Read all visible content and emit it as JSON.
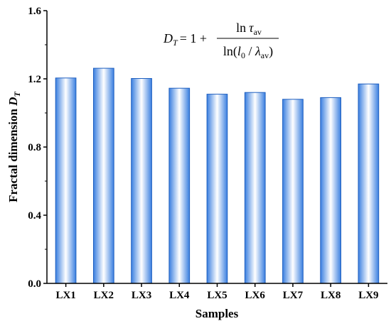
{
  "chart_data": {
    "type": "bar",
    "categories": [
      "LX1",
      "LX2",
      "LX3",
      "LX4",
      "LX5",
      "LX6",
      "LX7",
      "LX8",
      "LX9"
    ],
    "values": [
      1.205,
      1.262,
      1.202,
      1.145,
      1.11,
      1.12,
      1.08,
      1.09,
      1.17
    ],
    "xlabel": "Samples",
    "ylabel_main": "Fractal dimension ",
    "ylabel_symbol": "D",
    "ylabel_subscript": "T",
    "ylim": [
      0.0,
      1.6
    ],
    "yticks": [
      "0.0",
      "0.4",
      "0.8",
      "1.2",
      "1.6"
    ],
    "bar_fill": "gradient-blue",
    "colors": {
      "bar_edge": "#1f5fbf",
      "bar_dark": "#3a7fe0",
      "bar_light": "#ffffff",
      "axis": "#000000"
    },
    "grid": false,
    "annotation": {
      "lhs_symbol": "D",
      "lhs_subscript": "T",
      "equals_one_plus": "= 1 +",
      "numerator_ln": "ln",
      "numerator_symbol": "τ",
      "numerator_subscript": "av",
      "denominator_ln": "ln(",
      "denominator_l": "l",
      "denominator_l_subscript": "0",
      "denominator_slash": " / ",
      "denominator_lambda": "λ",
      "denominator_lambda_subscript": "av",
      "denominator_close": ")"
    }
  }
}
